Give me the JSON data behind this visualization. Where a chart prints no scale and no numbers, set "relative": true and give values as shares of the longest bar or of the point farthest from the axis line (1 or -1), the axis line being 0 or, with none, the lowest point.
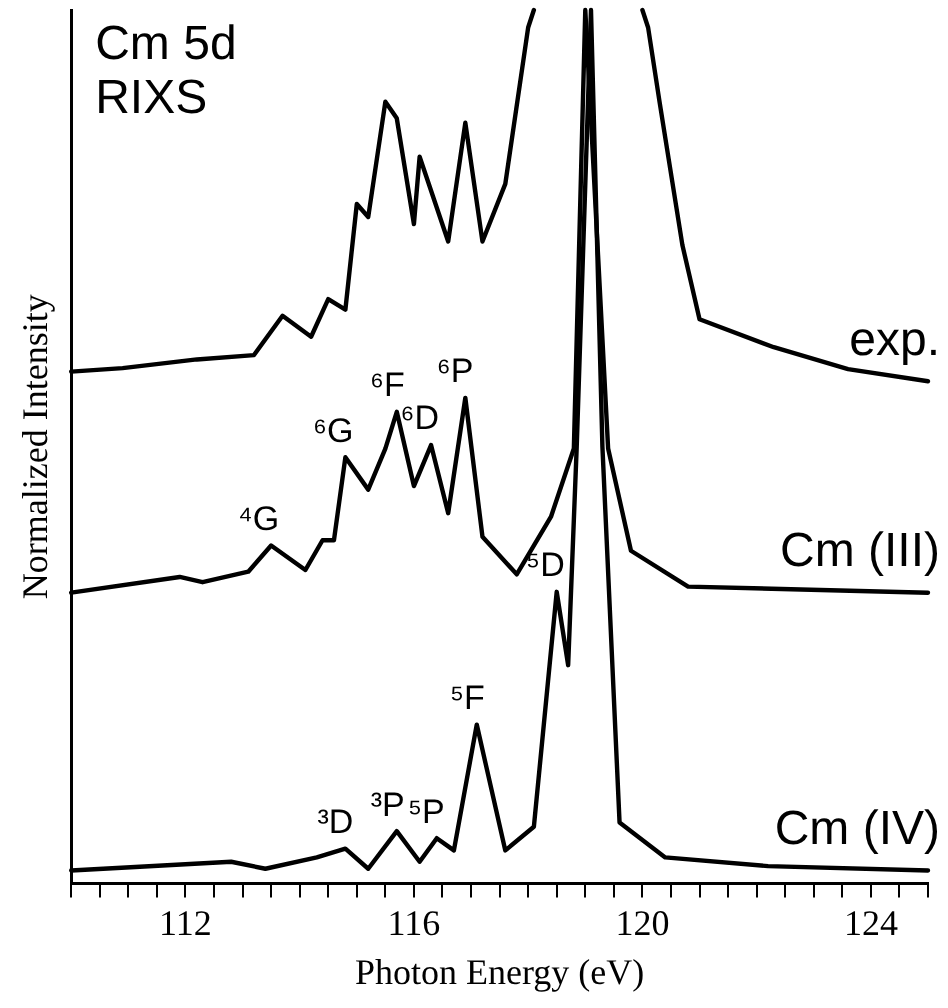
{
  "chart_data": {
    "type": "line",
    "relative": true,
    "xlabel": "Photon Energy (eV)",
    "ylabel": "Normalized Intensity",
    "xlim": [
      110,
      125
    ],
    "xticks": [
      {
        "value": 110,
        "label": null
      },
      {
        "value": 110.5,
        "label": null
      },
      {
        "value": 111,
        "label": null
      },
      {
        "value": 111.5,
        "label": null
      },
      112,
      {
        "value": 112.5,
        "label": null
      },
      {
        "value": 113,
        "label": null
      },
      {
        "value": 113.5,
        "label": null
      },
      {
        "value": 114,
        "label": null
      },
      {
        "value": 114.5,
        "label": null
      },
      {
        "value": 115,
        "label": null
      },
      {
        "value": 115.5,
        "label": null
      },
      116,
      {
        "value": 116.5,
        "label": null
      },
      {
        "value": 117,
        "label": null
      },
      {
        "value": 117.5,
        "label": null
      },
      {
        "value": 118,
        "label": null
      },
      {
        "value": 118.5,
        "label": null
      },
      {
        "value": 119,
        "label": null
      },
      {
        "value": 119.5,
        "label": null
      },
      120,
      {
        "value": 120.5,
        "label": null
      },
      {
        "value": 121,
        "label": null
      },
      {
        "value": 121.5,
        "label": null
      },
      {
        "value": 122,
        "label": null
      },
      {
        "value": 122.5,
        "label": null
      },
      {
        "value": 123,
        "label": null
      },
      {
        "value": 123.5,
        "label": null
      },
      124,
      {
        "value": 124.5,
        "label": null
      },
      {
        "value": 125,
        "label": null
      }
    ],
    "tick_labels": "x",
    "grid": false,
    "legend": false,
    "marker": "none",
    "line_style": "solid",
    "series": [
      {
        "name": "exp.",
        "color": "#000000",
        "x": [
          110,
          110.9,
          112.2,
          113.2,
          113.7,
          114.2,
          114.5,
          114.8,
          115.0,
          115.2,
          115.5,
          115.7,
          116.0,
          116.1,
          116.6,
          116.9,
          117.2,
          117.6,
          118.0,
          118.1,
          119.0,
          120.0,
          120.1,
          120.3,
          120.7,
          121.0,
          122.3,
          123.6,
          125
        ],
        "values": [
          0.586,
          0.59,
          0.6,
          0.605,
          0.65,
          0.626,
          0.669,
          0.657,
          0.778,
          0.763,
          0.895,
          0.876,
          0.755,
          0.832,
          0.735,
          0.871,
          0.735,
          0.801,
          0.98,
          1,
          null,
          1,
          0.98,
          0.895,
          0.731,
          0.646,
          0.614,
          0.589,
          0.575
        ]
      },
      {
        "name": "Cm (III)",
        "color": "#000000",
        "x": [
          110,
          111.9,
          112.3,
          113.1,
          113.5,
          114.1,
          114.4,
          114.6,
          114.8,
          115.2,
          115.5,
          115.7,
          116.0,
          116.3,
          116.6,
          116.9,
          117.2,
          117.8,
          118.4,
          118.8,
          119.0,
          119.4,
          119.8,
          120.8,
          125
        ],
        "values": [
          0.333,
          0.351,
          0.345,
          0.357,
          0.387,
          0.359,
          0.393,
          0.393,
          0.488,
          0.451,
          0.498,
          0.54,
          0.455,
          0.502,
          0.424,
          0.556,
          0.397,
          0.354,
          0.42,
          0.498,
          1,
          0.498,
          0.381,
          0.34,
          0.333
        ]
      },
      {
        "name": "Cm (IV)",
        "color": "#000000",
        "x": [
          110,
          112.8,
          113.4,
          114.3,
          114.8,
          115.2,
          115.7,
          116.1,
          116.4,
          116.7,
          117.1,
          117.6,
          118.1,
          118.5,
          118.7,
          118.85,
          119.1,
          119.3,
          119.6,
          120.4,
          122.2,
          125
        ],
        "values": [
          0.015,
          0.025,
          0.017,
          0.03,
          0.04,
          0.017,
          0.06,
          0.025,
          0.052,
          0.038,
          0.182,
          0.038,
          0.065,
          0.334,
          0.25,
          0.5,
          1,
          0.5,
          0.07,
          0.03,
          0.02,
          0.015
        ]
      }
    ],
    "annotations": [
      "Cm 5d RIXS",
      {
        "text": "⁴G",
        "x": 113.5,
        "y": 0.387
      },
      {
        "text": "⁶G",
        "x": 114.8,
        "y": 0.488
      },
      {
        "text": "⁶F",
        "x": 115.7,
        "y": 0.54
      },
      {
        "text": "⁶D",
        "x": 116.3,
        "y": 0.502
      },
      {
        "text": "⁶P",
        "x": 116.9,
        "y": 0.556
      },
      {
        "text": "³D",
        "x": 114.8,
        "y": 0.04
      },
      {
        "text": "³P",
        "x": 115.7,
        "y": 0.06
      },
      {
        "text": "⁵P",
        "x": 116.4,
        "y": 0.052
      },
      {
        "text": "⁵F",
        "x": 117.1,
        "y": 0.182
      },
      {
        "text": "⁵D",
        "x": 118.5,
        "y": 0.334
      }
    ]
  }
}
